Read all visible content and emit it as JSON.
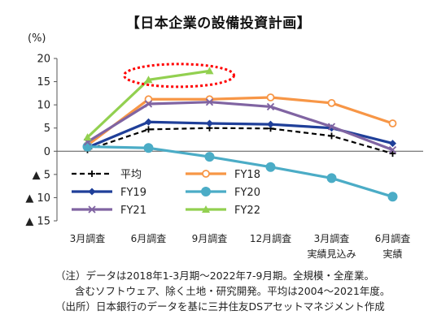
{
  "chart_data": {
    "type": "line",
    "title": "【日本企業の設備投資計画】",
    "unit_label": "(%)",
    "categories": [
      "3月調査",
      "6月調査",
      "9月調査",
      "12月調査",
      "3月調査",
      "6月調査"
    ],
    "categories_sub": [
      "",
      "",
      "",
      "",
      "実績見込み",
      "実績"
    ],
    "y_ticks": [
      {
        "value": 20,
        "label": "20"
      },
      {
        "value": 15,
        "label": "15"
      },
      {
        "value": 10,
        "label": "10"
      },
      {
        "value": 5,
        "label": "5"
      },
      {
        "value": 0,
        "label": "0"
      },
      {
        "value": -5,
        "label": "▲ 5"
      },
      {
        "value": -10,
        "label": "▲ 10"
      },
      {
        "value": -15,
        "label": "▲ 15"
      }
    ],
    "ylim": [
      -15,
      20
    ],
    "grid": false,
    "legend_position": "lower-left inside plot",
    "series": [
      {
        "name": "平均",
        "values": [
          0.3,
          4.7,
          5.0,
          4.9,
          3.3,
          -0.5
        ],
        "color": "#000000",
        "style": "dashed",
        "marker": "plus"
      },
      {
        "name": "FY18",
        "values": [
          1.3,
          11.2,
          11.2,
          11.6,
          10.4,
          6.0
        ],
        "color": "#F79646",
        "style": "solid",
        "marker": "open-circle"
      },
      {
        "name": "FY19",
        "values": [
          0.8,
          6.3,
          6.0,
          5.8,
          5.0,
          1.7
        ],
        "color": "#1F3F99",
        "style": "solid",
        "marker": "diamond"
      },
      {
        "name": "FY20",
        "values": [
          1.0,
          0.7,
          -1.2,
          -3.4,
          -5.8,
          -9.8
        ],
        "color": "#4BACC6",
        "style": "solid",
        "marker": "circle"
      },
      {
        "name": "FY21",
        "values": [
          2.0,
          10.2,
          10.6,
          9.6,
          5.3,
          0.3
        ],
        "color": "#8064A2",
        "style": "solid",
        "marker": "x"
      },
      {
        "name": "FY22",
        "values": [
          3.0,
          15.4,
          17.3,
          null,
          null,
          null
        ],
        "color": "#92D050",
        "style": "solid",
        "marker": "triangle"
      }
    ],
    "highlight": {
      "series": "FY22",
      "color": "#FF0000",
      "shape": "dashed-ellipse"
    }
  },
  "notes": {
    "line1": "（注）データは2018年1-3月期～2022年7-9月期。全規模・全産業。",
    "line2": "含むソフトウェア、除く土地・研究開発。平均は2004～2021年度。",
    "line3": "（出所）日本銀行のデータを基に三井住友DSアセットマネジメント作成"
  }
}
